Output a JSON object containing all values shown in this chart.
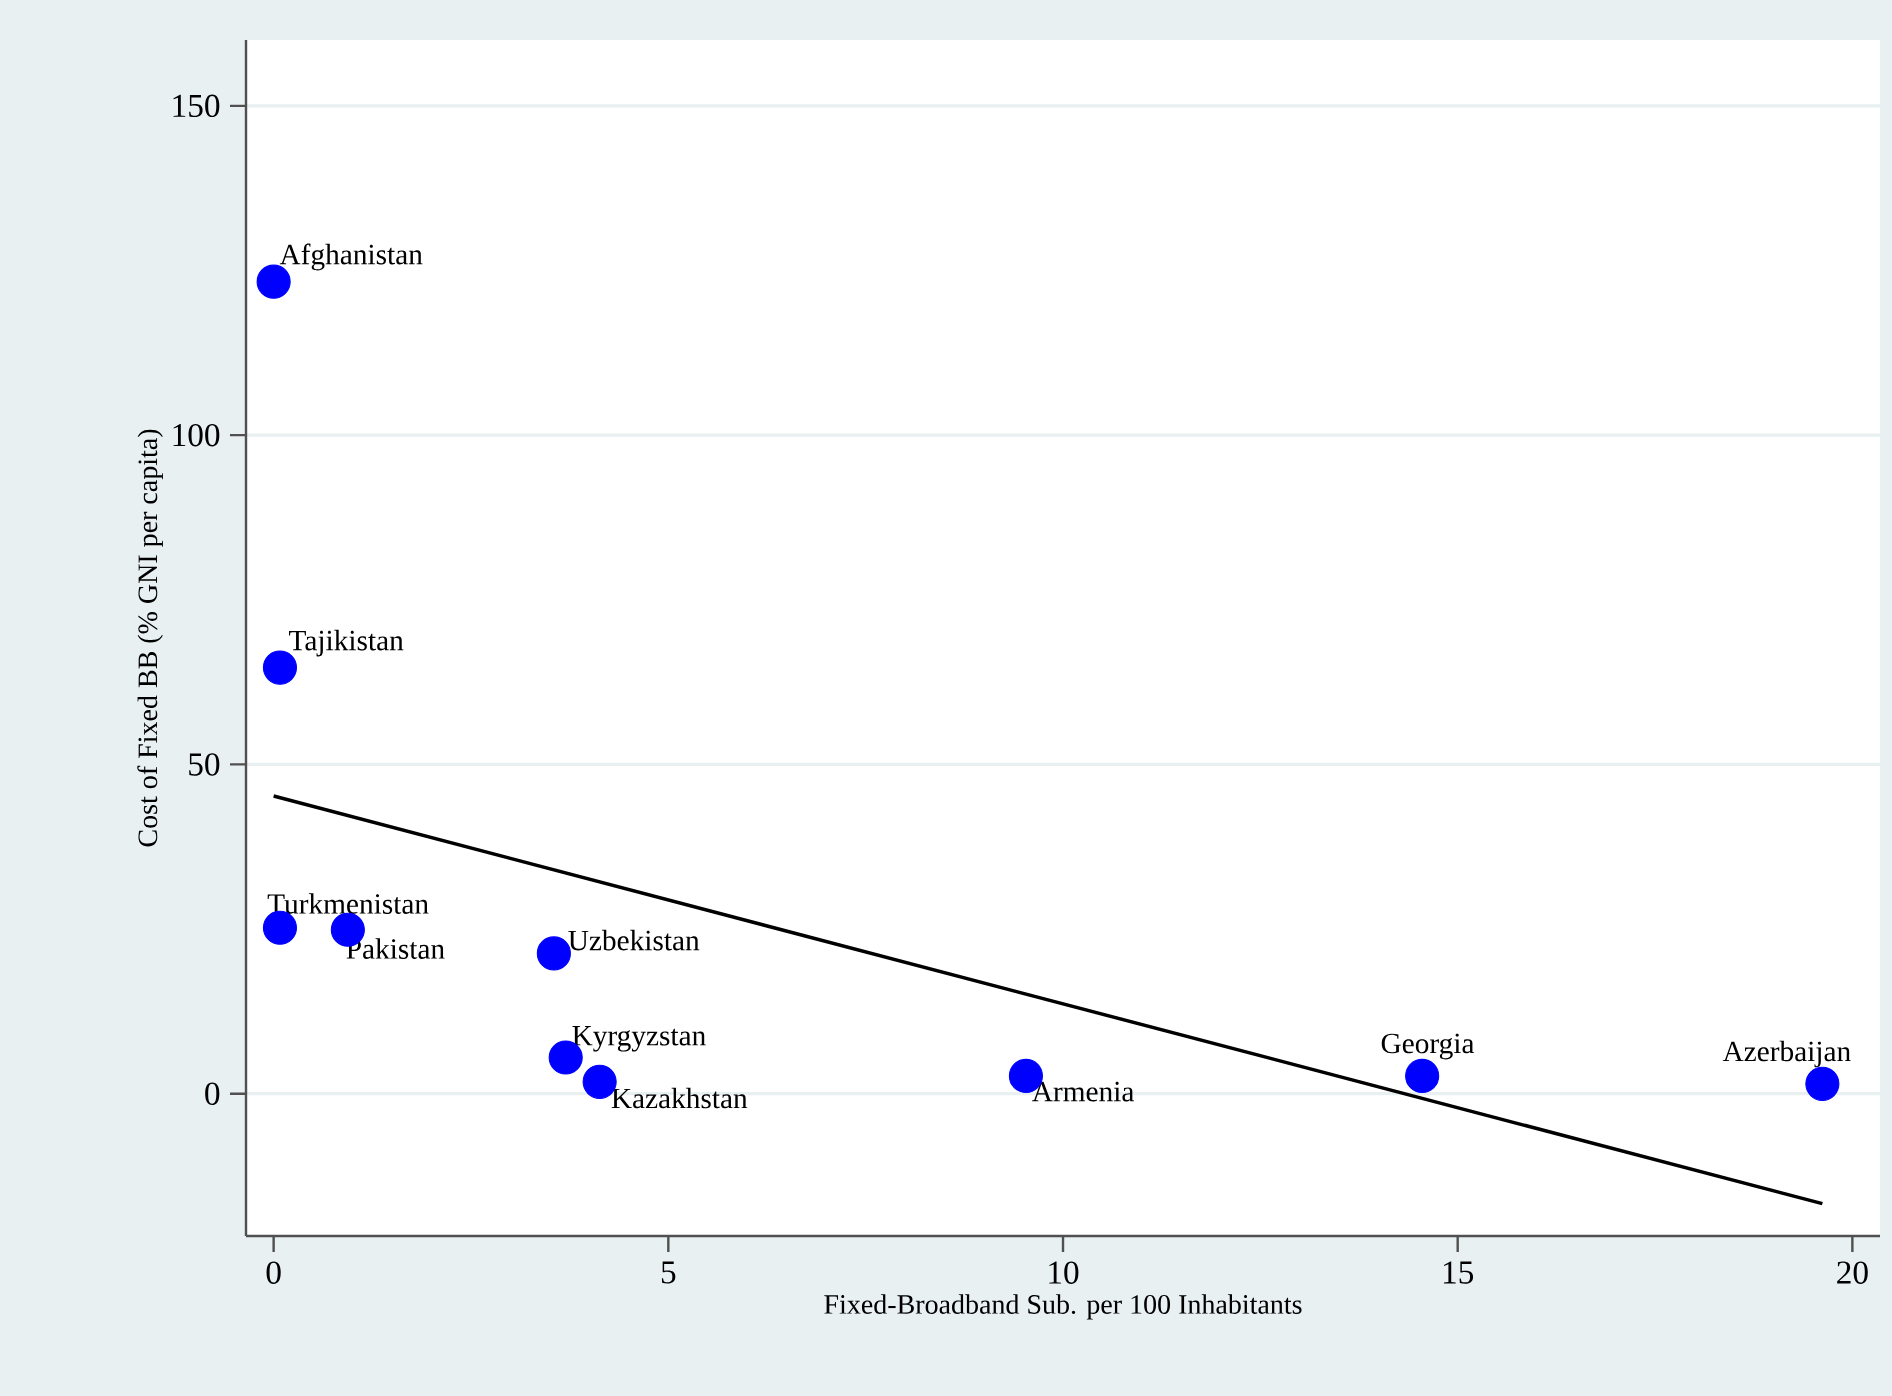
{
  "chart_data": {
    "type": "scatter",
    "xlabel": "Fixed-Broadband Sub. per 100 Inhabitants",
    "ylabel": "Cost of Fixed BB (% GNI per capita)",
    "xlim": [
      -0.35,
      20.35
    ],
    "ylim": [
      -21.6,
      160
    ],
    "xticks": [
      0,
      5,
      10,
      15,
      20
    ],
    "yticks": [
      0,
      50,
      100,
      150
    ],
    "grid": "y",
    "series": [
      {
        "color": "#0000ff",
        "marker": "circle",
        "x": [
          0,
          0.08,
          0.08,
          0.94,
          3.55,
          3.7,
          4.13,
          9.53,
          14.55,
          19.62
        ],
        "values": [
          123.3,
          64.7,
          25.2,
          24.9,
          21.3,
          5.5,
          1.8,
          2.7,
          2.7,
          1.5
        ]
      },
      {
        "type": "line",
        "marker": "none",
        "color": "#000000",
        "x": [
          0,
          19.62
        ],
        "values": [
          45.2,
          -16.7
        ]
      }
    ],
    "annotations": [
      {
        "text": "Afghanistan",
        "x": 0,
        "y": 123.3
      },
      {
        "text": "Tajikistan",
        "x": 0.08,
        "y": 64.7
      },
      {
        "text": "Turkmenistan",
        "x": 0.08,
        "y": 25.2
      },
      {
        "text": "Pakistan",
        "x": 0.94,
        "y": 24.9
      },
      {
        "text": "Uzbekistan",
        "x": 3.55,
        "y": 21.3
      },
      {
        "text": "Kyrgyzstan",
        "x": 3.7,
        "y": 5.5
      },
      {
        "text": "Kazakhstan",
        "x": 4.13,
        "y": 1.8
      },
      {
        "text": "Armenia",
        "x": 9.53,
        "y": 2.7
      },
      {
        "text": "Georgia",
        "x": 14.55,
        "y": 2.7
      },
      {
        "text": "Azerbaijan",
        "x": 19.62,
        "y": 1.5
      }
    ]
  }
}
